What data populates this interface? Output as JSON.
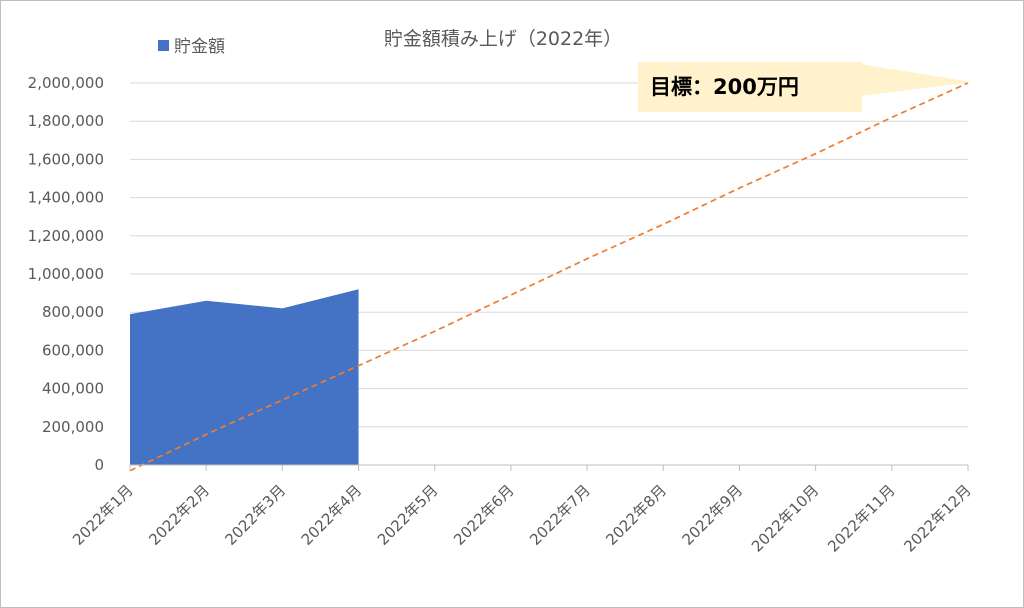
{
  "chart_data": {
    "type": "area",
    "title": "貯金額積み上げ（2022年）",
    "categories": [
      "2022年1月",
      "2022年2月",
      "2022年3月",
      "2022年4月",
      "2022年5月",
      "2022年6月",
      "2022年7月",
      "2022年8月",
      "2022年9月",
      "2022年10月",
      "2022年11月",
      "2022年12月"
    ],
    "series": [
      {
        "name": "貯金額",
        "type": "area",
        "color": "#4472C4",
        "values": [
          790000,
          860000,
          820000,
          920000,
          null,
          null,
          null,
          null,
          null,
          null,
          null,
          null
        ]
      },
      {
        "type": "line",
        "style": "dashed",
        "color": "#ED7D31",
        "values": [
          -30000,
          160000,
          340000,
          520000,
          700000,
          890000,
          1080000,
          1260000,
          1450000,
          1630000,
          1820000,
          2000000
        ]
      }
    ],
    "ylim": [
      0,
      2000000
    ],
    "yticks": [
      0,
      200000,
      400000,
      600000,
      800000,
      1000000,
      1200000,
      1400000,
      1600000,
      1800000,
      2000000
    ],
    "ytick_labels": [
      "0",
      "200,000",
      "400,000",
      "600,000",
      "800,000",
      "1,000,000",
      "1,200,000",
      "1,400,000",
      "1,600,000",
      "1,800,000",
      "2,000,000"
    ],
    "grid": true,
    "legend_position": "top-left",
    "annotation": {
      "text": "目標：200万円",
      "fill": "#FFF2CC"
    }
  }
}
